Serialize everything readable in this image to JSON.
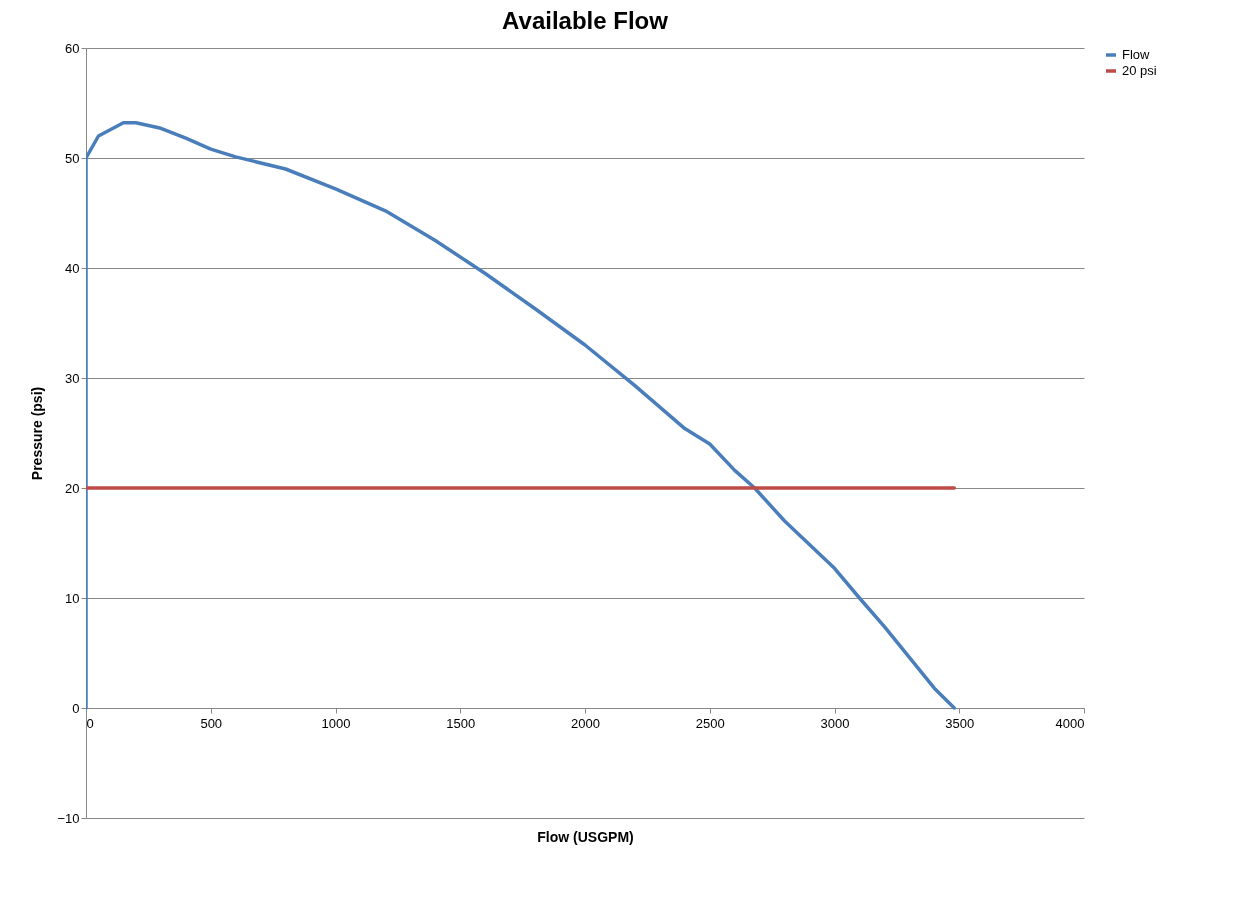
{
  "chart_data": {
    "type": "line",
    "title": "Available Flow",
    "xlabel": "Flow (USGPM)",
    "ylabel": "Pressure (psi)",
    "xlim": [
      0,
      4000
    ],
    "xticks": [
      0,
      500,
      1000,
      1500,
      2000,
      2500,
      3000,
      3500,
      4000
    ],
    "ylim": [
      -10,
      60
    ],
    "yticks": [
      -10,
      0,
      10,
      20,
      30,
      40,
      50,
      60
    ],
    "grid": "y",
    "legend": "right",
    "marker": "none",
    "line_style": "solid",
    "series": [
      {
        "name": "Flow",
        "color": "#4a7ebb",
        "x": [
          0,
          0,
          50,
          150,
          200,
          300,
          400,
          500,
          600,
          800,
          1000,
          1200,
          1400,
          1600,
          1800,
          2000,
          2200,
          2400,
          2500,
          2600,
          2680,
          2800,
          3000,
          3100,
          3200,
          3400,
          3480
        ],
        "values": [
          0,
          50,
          52,
          53.2,
          53.2,
          52.7,
          51.8,
          50.8,
          50.1,
          49,
          47.2,
          45.2,
          42.5,
          39.5,
          36.3,
          33,
          29.3,
          25.4,
          24,
          21.6,
          20,
          17,
          12.7,
          10,
          7.4,
          1.8,
          0
        ]
      },
      {
        "name": "20 psi",
        "color": "#be4b48",
        "x": [
          0,
          3480
        ],
        "values": [
          20,
          20
        ]
      }
    ]
  }
}
